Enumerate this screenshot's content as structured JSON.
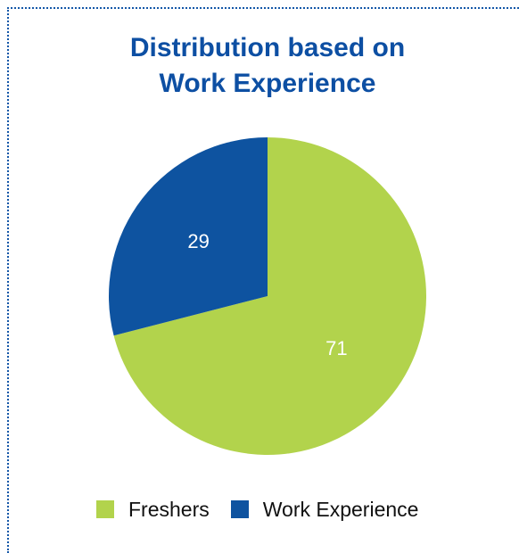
{
  "chart_data": {
    "type": "pie",
    "title": "Distribution based on Work Experience",
    "title_lines": [
      "Distribution based on",
      "Work Experience"
    ],
    "categories": [
      "Freshers",
      "Work Experience"
    ],
    "values": [
      71,
      29
    ],
    "data_labels": [
      "71",
      "29"
    ],
    "colors": [
      "#b2d34c",
      "#0e53a0"
    ],
    "start": "top, clockwise",
    "legend": "bottom"
  },
  "colors": {
    "title": "#0d4fa3",
    "border": "#1457a8"
  }
}
